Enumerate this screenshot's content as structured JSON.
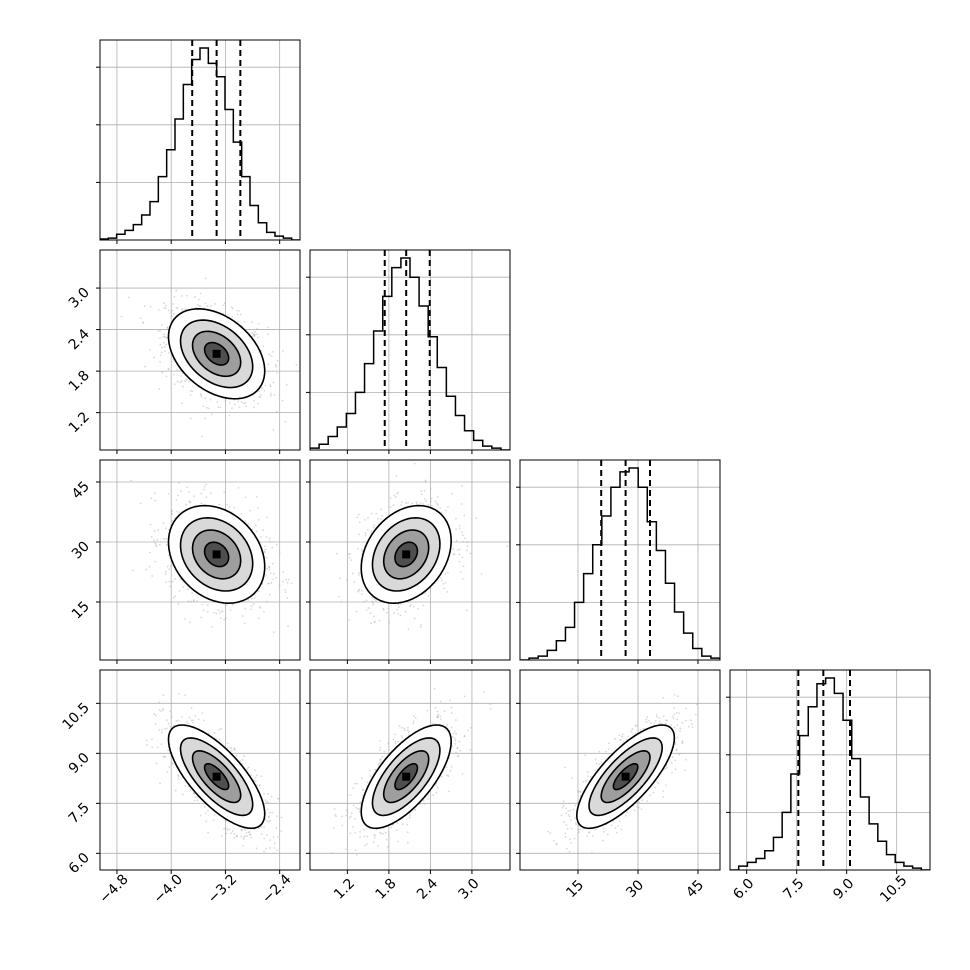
{
  "chart_data": {
    "type": "corner",
    "parameters": [
      {
        "median": -3.33,
        "q16": -3.69,
        "q84": -2.98,
        "range": [
          -5.05,
          -2.1
        ],
        "ticks": [
          -4.8,
          -4.0,
          -3.2,
          -2.4
        ],
        "tick_labels": [
          "−4.8",
          "−4.0",
          "−3.2",
          "−2.4"
        ],
        "hist": [
          0.005,
          0.01,
          0.03,
          0.05,
          0.08,
          0.13,
          0.2,
          0.33,
          0.47,
          0.63,
          0.81,
          0.94,
          1.0,
          0.92,
          0.85,
          0.68,
          0.51,
          0.33,
          0.18,
          0.09,
          0.04,
          0.02,
          0.01,
          0.0
        ]
      },
      {
        "median": 2.05,
        "q16": 1.74,
        "q84": 2.39,
        "range": [
          0.66,
          3.55
        ],
        "ticks": [
          1.2,
          1.8,
          2.4,
          3.0
        ],
        "tick_labels": [
          "1.2",
          "1.8",
          "2.4",
          "3.0"
        ],
        "hist": [
          0.01,
          0.03,
          0.07,
          0.12,
          0.19,
          0.3,
          0.45,
          0.62,
          0.8,
          0.95,
          1.0,
          0.9,
          0.75,
          0.59,
          0.43,
          0.28,
          0.18,
          0.1,
          0.05,
          0.02,
          0.01,
          0.0
        ]
      },
      {
        "median": 26.9,
        "q16": 20.8,
        "q84": 33.0,
        "range": [
          0.5,
          50.5
        ],
        "ticks": [
          15,
          30,
          45
        ],
        "tick_labels": [
          "15",
          "30",
          "45"
        ],
        "hist": [
          0.0,
          0.01,
          0.02,
          0.05,
          0.1,
          0.17,
          0.3,
          0.45,
          0.6,
          0.75,
          0.9,
          0.98,
          1.0,
          0.9,
          0.72,
          0.57,
          0.4,
          0.25,
          0.14,
          0.06,
          0.02,
          0.01
        ]
      },
      {
        "median": 8.3,
        "q16": 7.55,
        "q84": 9.1,
        "range": [
          5.5,
          11.5
        ],
        "ticks": [
          6.0,
          7.5,
          9.0,
          10.5
        ],
        "tick_labels": [
          "6.0",
          "7.5",
          "9.0",
          "10.5"
        ],
        "hist": [
          0.0,
          0.02,
          0.04,
          0.06,
          0.1,
          0.17,
          0.3,
          0.5,
          0.7,
          0.85,
          0.97,
          1.0,
          0.92,
          0.78,
          0.58,
          0.38,
          0.24,
          0.15,
          0.08,
          0.04,
          0.02,
          0.01,
          0.0
        ]
      }
    ],
    "correlations": [
      [
        1.0,
        -0.38,
        -0.25,
        -0.72
      ],
      [
        -0.38,
        1.0,
        0.28,
        0.68
      ],
      [
        -0.25,
        0.28,
        1.0,
        0.75
      ],
      [
        -0.72,
        0.68,
        0.75,
        1.0
      ]
    ],
    "contour_levels_sigma": [
      0.5,
      1.0,
      1.5,
      2.0
    ],
    "quantile_lines": [
      "0.16",
      "0.5",
      "0.84"
    ],
    "grid": true,
    "colors": {
      "line": "#000000",
      "points": "#aaaaaa",
      "grid": "#b0b0b0"
    }
  }
}
